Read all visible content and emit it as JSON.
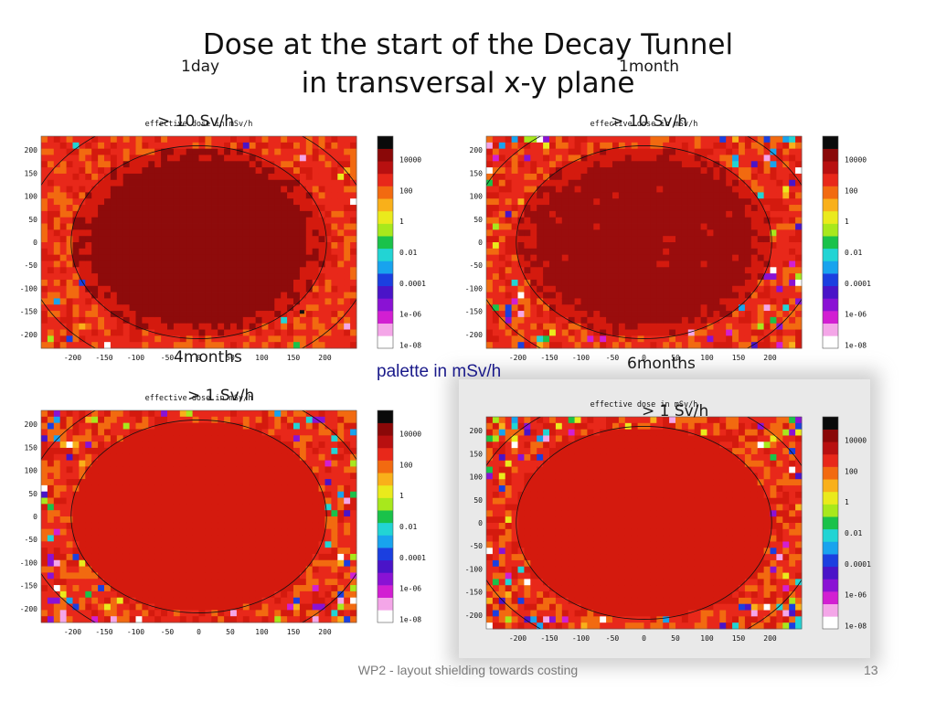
{
  "slide": {
    "title_line1": "Dose at the start of the Decay Tunnel",
    "title_line2": "in transversal x-y plane",
    "palette_note": "palette in mSv/h",
    "footer": "WP2 - layout shielding towards  costing",
    "page_number": "13"
  },
  "chart_data": [
    {
      "type": "heatmap",
      "title": "effective dose in mSv/h",
      "annotation_time": "1day",
      "annotation_dose": "> 10 Sv/h",
      "xticks": [
        "-200",
        "-150",
        "-100",
        "-50",
        "0",
        "50",
        "100",
        "150",
        "200"
      ],
      "yticks": [
        "200",
        "150",
        "100",
        "50",
        "0",
        "-50",
        "-100",
        "-150",
        "-200"
      ],
      "xlim": [
        -250,
        250
      ],
      "ylim": [
        -230,
        230
      ],
      "palette_labels": [
        "10000",
        "100",
        "1",
        "0.01",
        "0.0001",
        "1e-06",
        "1e-08"
      ],
      "core_color": "#8e0b0b",
      "outer_noise": 0.05
    },
    {
      "type": "heatmap",
      "title": "effective dose in mSv/h",
      "annotation_time": "1month",
      "annotation_dose": "> 10 Sv/h",
      "xticks": [
        "-200",
        "-150",
        "-100",
        "-50",
        "0",
        "50",
        "100",
        "150",
        "200"
      ],
      "yticks": [
        "200",
        "150",
        "100",
        "50",
        "0",
        "-50",
        "-100",
        "-150",
        "-200"
      ],
      "xlim": [
        -250,
        250
      ],
      "ylim": [
        -230,
        230
      ],
      "palette_labels": [
        "10000",
        "100",
        "1",
        "0.01",
        "0.0001",
        "1e-06",
        "1e-08"
      ],
      "core_color": "#9a0d0d",
      "outer_noise": 0.35
    },
    {
      "type": "heatmap",
      "title": "effective dose in mSv/h",
      "annotation_time": "4months",
      "annotation_dose": ">  1 Sv/h",
      "xticks": [
        "-200",
        "-150",
        "-100",
        "-50",
        "0",
        "50",
        "100",
        "150",
        "200"
      ],
      "yticks": [
        "200",
        "150",
        "100",
        "50",
        "0",
        "-50",
        "-100",
        "-150",
        "-200"
      ],
      "xlim": [
        -250,
        250
      ],
      "ylim": [
        -230,
        230
      ],
      "palette_labels": [
        "10000",
        "100",
        "1",
        "0.01",
        "0.0001",
        "1e-06",
        "1e-08"
      ],
      "core_color": "#d41a0e",
      "outer_noise": 0.45
    },
    {
      "type": "heatmap",
      "title": "effective dose in mSv/h",
      "annotation_time": "6months",
      "annotation_dose": "> 1 Sv/h",
      "xticks": [
        "-200",
        "-150",
        "-100",
        "-50",
        "0",
        "50",
        "100",
        "150",
        "200"
      ],
      "yticks": [
        "200",
        "150",
        "100",
        "50",
        "0",
        "-50",
        "-100",
        "-150",
        "-200"
      ],
      "xlim": [
        -250,
        250
      ],
      "ylim": [
        -230,
        230
      ],
      "palette_labels": [
        "10000",
        "100",
        "1",
        "0.01",
        "0.0001",
        "1e-06",
        "1e-08"
      ],
      "core_color": "#d41a0e",
      "outer_noise": 0.5
    }
  ]
}
